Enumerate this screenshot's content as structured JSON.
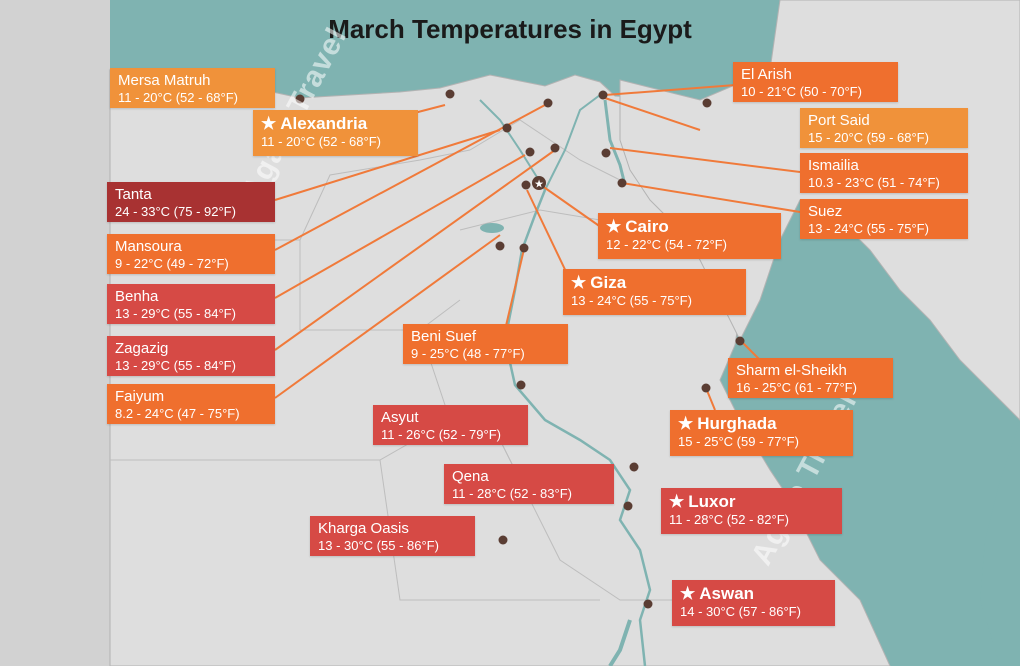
{
  "title": "March Temperatures in Egypt",
  "watermark": "Agate Travel",
  "colors": {
    "sea": "#7fb3b1",
    "land": "#dedede",
    "land_outside": "#d0d0d0",
    "border": "#b3b3b3",
    "dot": "#5a3d33",
    "leader": "#f07a3a",
    "orange_light": "#f0923a",
    "orange": "#ef6f2e",
    "red_dark": "#a83232",
    "red": "#d64a45"
  },
  "cities": [
    {
      "id": "mersa-matruh",
      "name": "Mersa Matruh",
      "temp": "11 - 20°C (52 - 68°F)",
      "major": false,
      "color": "orange_light"
    },
    {
      "id": "alexandria",
      "name": "Alexandria",
      "temp": "11 - 20°C (52 - 68°F)",
      "major": true,
      "color": "orange_light"
    },
    {
      "id": "tanta",
      "name": "Tanta",
      "temp": "24 - 33°C (75 - 92°F)",
      "major": false,
      "color": "red_dark"
    },
    {
      "id": "mansoura",
      "name": "Mansoura",
      "temp": "9 - 22°C (49 - 72°F)",
      "major": false,
      "color": "orange"
    },
    {
      "id": "benha",
      "name": "Benha",
      "temp": "13 - 29°C (55 - 84°F)",
      "major": false,
      "color": "red"
    },
    {
      "id": "zagazig",
      "name": "Zagazig",
      "temp": "13 - 29°C (55 - 84°F)",
      "major": false,
      "color": "red"
    },
    {
      "id": "faiyum",
      "name": "Faiyum",
      "temp": "8.2 - 24°C (47 - 75°F)",
      "major": false,
      "color": "orange"
    },
    {
      "id": "el-arish",
      "name": "El Arish",
      "temp": "10 - 21°C (50 - 70°F)",
      "major": false,
      "color": "orange"
    },
    {
      "id": "port-said",
      "name": "Port Said",
      "temp": "15 - 20°C (59 - 68°F)",
      "major": false,
      "color": "orange_light"
    },
    {
      "id": "ismailia",
      "name": "Ismailia",
      "temp": "10.3 - 23°C (51 - 74°F)",
      "major": false,
      "color": "orange"
    },
    {
      "id": "suez",
      "name": "Suez",
      "temp": "13 - 24°C (55 - 75°F)",
      "major": false,
      "color": "orange"
    },
    {
      "id": "cairo",
      "name": "Cairo",
      "temp": "12 - 22°C (54 - 72°F)",
      "major": true,
      "color": "orange"
    },
    {
      "id": "giza",
      "name": "Giza",
      "temp": "13 - 24°C (55 - 75°F)",
      "major": true,
      "color": "orange"
    },
    {
      "id": "beni-suef",
      "name": "Beni Suef",
      "temp": "9 - 25°C (48 - 77°F)",
      "major": false,
      "color": "orange"
    },
    {
      "id": "sharm-el-sheikh",
      "name": "Sharm el-Sheikh",
      "temp": "16 - 25°C (61 - 77°F)",
      "major": false,
      "color": "orange"
    },
    {
      "id": "hurghada",
      "name": "Hurghada",
      "temp": "15 - 25°C (59 - 77°F)",
      "major": true,
      "color": "orange"
    },
    {
      "id": "asyut",
      "name": "Asyut",
      "temp": "11 - 26°C (52 - 79°F)",
      "major": false,
      "color": "red"
    },
    {
      "id": "qena",
      "name": "Qena",
      "temp": "11 - 28°C (52 - 83°F)",
      "major": false,
      "color": "red"
    },
    {
      "id": "luxor",
      "name": "Luxor",
      "temp": "11 - 28°C (52 - 82°F)",
      "major": true,
      "color": "red"
    },
    {
      "id": "kharga-oasis",
      "name": "Kharga Oasis",
      "temp": "13 - 30°C (55 - 86°F)",
      "major": false,
      "color": "red"
    },
    {
      "id": "aswan",
      "name": "Aswan",
      "temp": "14 - 30°C (57 - 86°F)",
      "major": true,
      "color": "red"
    }
  ]
}
